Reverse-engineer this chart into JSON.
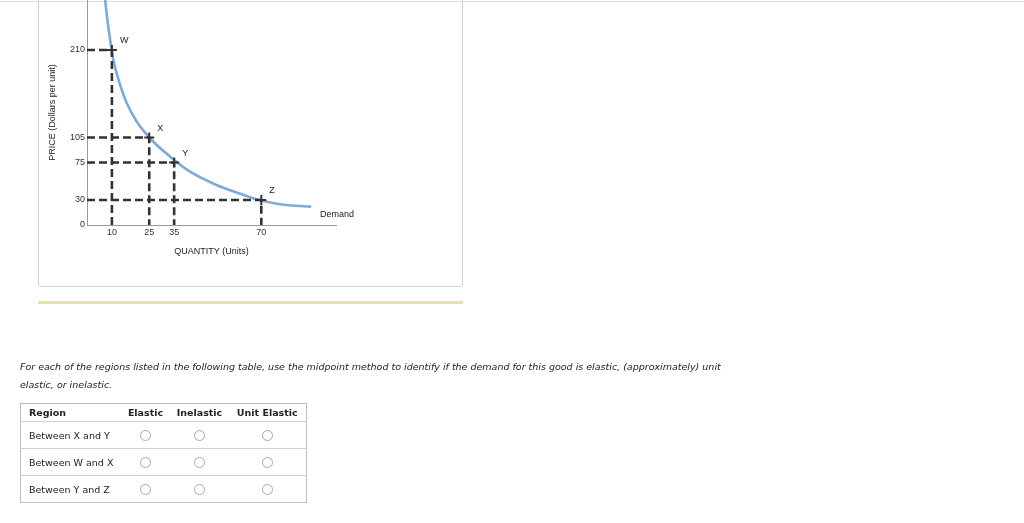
{
  "chart_data": {
    "type": "line",
    "xlabel": "QUANTITY (Units)",
    "ylabel": "PRICE (Dollars per unit)",
    "xlim": [
      0,
      100
    ],
    "ylim": [
      0,
      270
    ],
    "xticks": [
      10,
      25,
      35,
      70
    ],
    "yticks": [
      0,
      30,
      75,
      105,
      210
    ],
    "series": [
      {
        "name": "Demand",
        "color": "#7eaad8",
        "x": [
          7.3,
          8.2,
          9.3,
          10.6,
          13.1,
          16,
          20,
          26,
          33.4,
          41.4,
          52,
          63,
          68,
          77.6,
          90
        ],
        "values": [
          270,
          246,
          222,
          198,
          170,
          146,
          124,
          102,
          82,
          64,
          48,
          36,
          31,
          25,
          22
        ]
      },
      {
        "color": "#333333",
        "line_style": "dashed",
        "x": [
          0,
          10,
          10
        ],
        "values": [
          210,
          210,
          0
        ]
      },
      {
        "color": "#333333",
        "line_style": "dashed",
        "x": [
          0,
          25,
          25
        ],
        "values": [
          105,
          105,
          0
        ]
      },
      {
        "color": "#333333",
        "line_style": "dashed",
        "x": [
          0,
          35,
          35
        ],
        "values": [
          75,
          75,
          0
        ]
      },
      {
        "color": "#333333",
        "line_style": "dashed",
        "x": [
          0,
          70,
          70
        ],
        "values": [
          30,
          30,
          0
        ]
      },
      {
        "type": "scatter",
        "marker": "cross",
        "color": "#333333",
        "x": [
          10,
          25,
          35,
          70
        ],
        "values": [
          210,
          105,
          75,
          30
        ]
      }
    ],
    "annotations": [
      {
        "text": "W",
        "x": 10,
        "y": 210
      },
      {
        "text": "X",
        "x": 25,
        "y": 105
      },
      {
        "text": "Y",
        "x": 35,
        "y": 75
      },
      {
        "text": "Z",
        "x": 70,
        "y": 30
      },
      "For each of the regions listed in the following table, use the midpoint method to identify if the demand for this good is elastic, (approximately) unit elastic, or inelastic.",
      "Region",
      "Elastic",
      "Inelastic",
      "Unit Elastic",
      "Between X and Y",
      "Between W and X",
      "Between Y and Z"
    ]
  }
}
